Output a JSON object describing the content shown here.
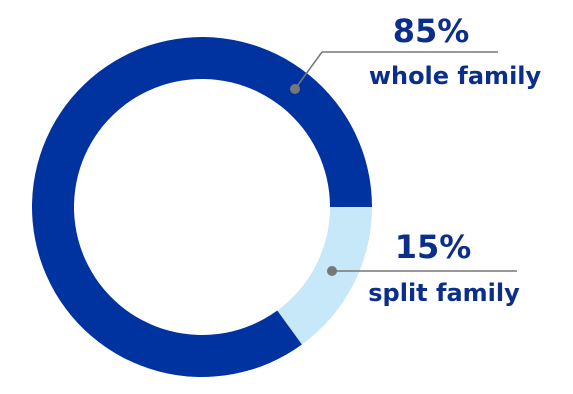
{
  "chart_data": {
    "type": "pie",
    "style": "donut",
    "slices": [
      {
        "label": "whole family",
        "value": 85,
        "value_label": "85%",
        "color": "#0033A0"
      },
      {
        "label": "split family",
        "value": 15,
        "value_label": "15%",
        "color": "#C6E8F8"
      }
    ],
    "text_color": "#0A2E8A",
    "leader_color": "#777777",
    "background": "#FFFFFF"
  }
}
